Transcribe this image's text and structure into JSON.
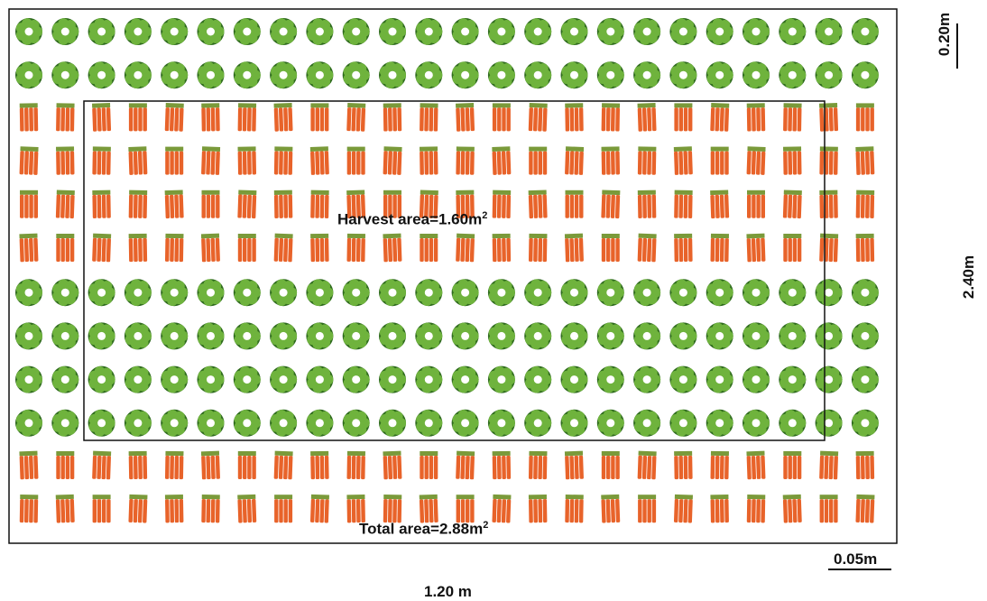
{
  "labels": {
    "harvest_prefix": "Harvest area=1.60m",
    "total_prefix": "Total area=2.88m",
    "exponent": "2",
    "width": "1.20 m",
    "height": "2.40m",
    "scale_row_spacing": "0.20m",
    "scale_plant_spacing": "0.05m"
  },
  "rows": [
    "lettuce",
    "lettuce",
    "carrot",
    "carrot",
    "carrot",
    "carrot",
    "lettuce",
    "lettuce",
    "lettuce",
    "lettuce",
    "carrot",
    "carrot"
  ],
  "plants_per_row": 24,
  "colors": {
    "outline": "#111111",
    "lettuce_dark": "#2f6b1e",
    "lettuce_light": "#6fb33d",
    "carrot": "#e8632a",
    "carrot_top": "#7a9a3a"
  }
}
